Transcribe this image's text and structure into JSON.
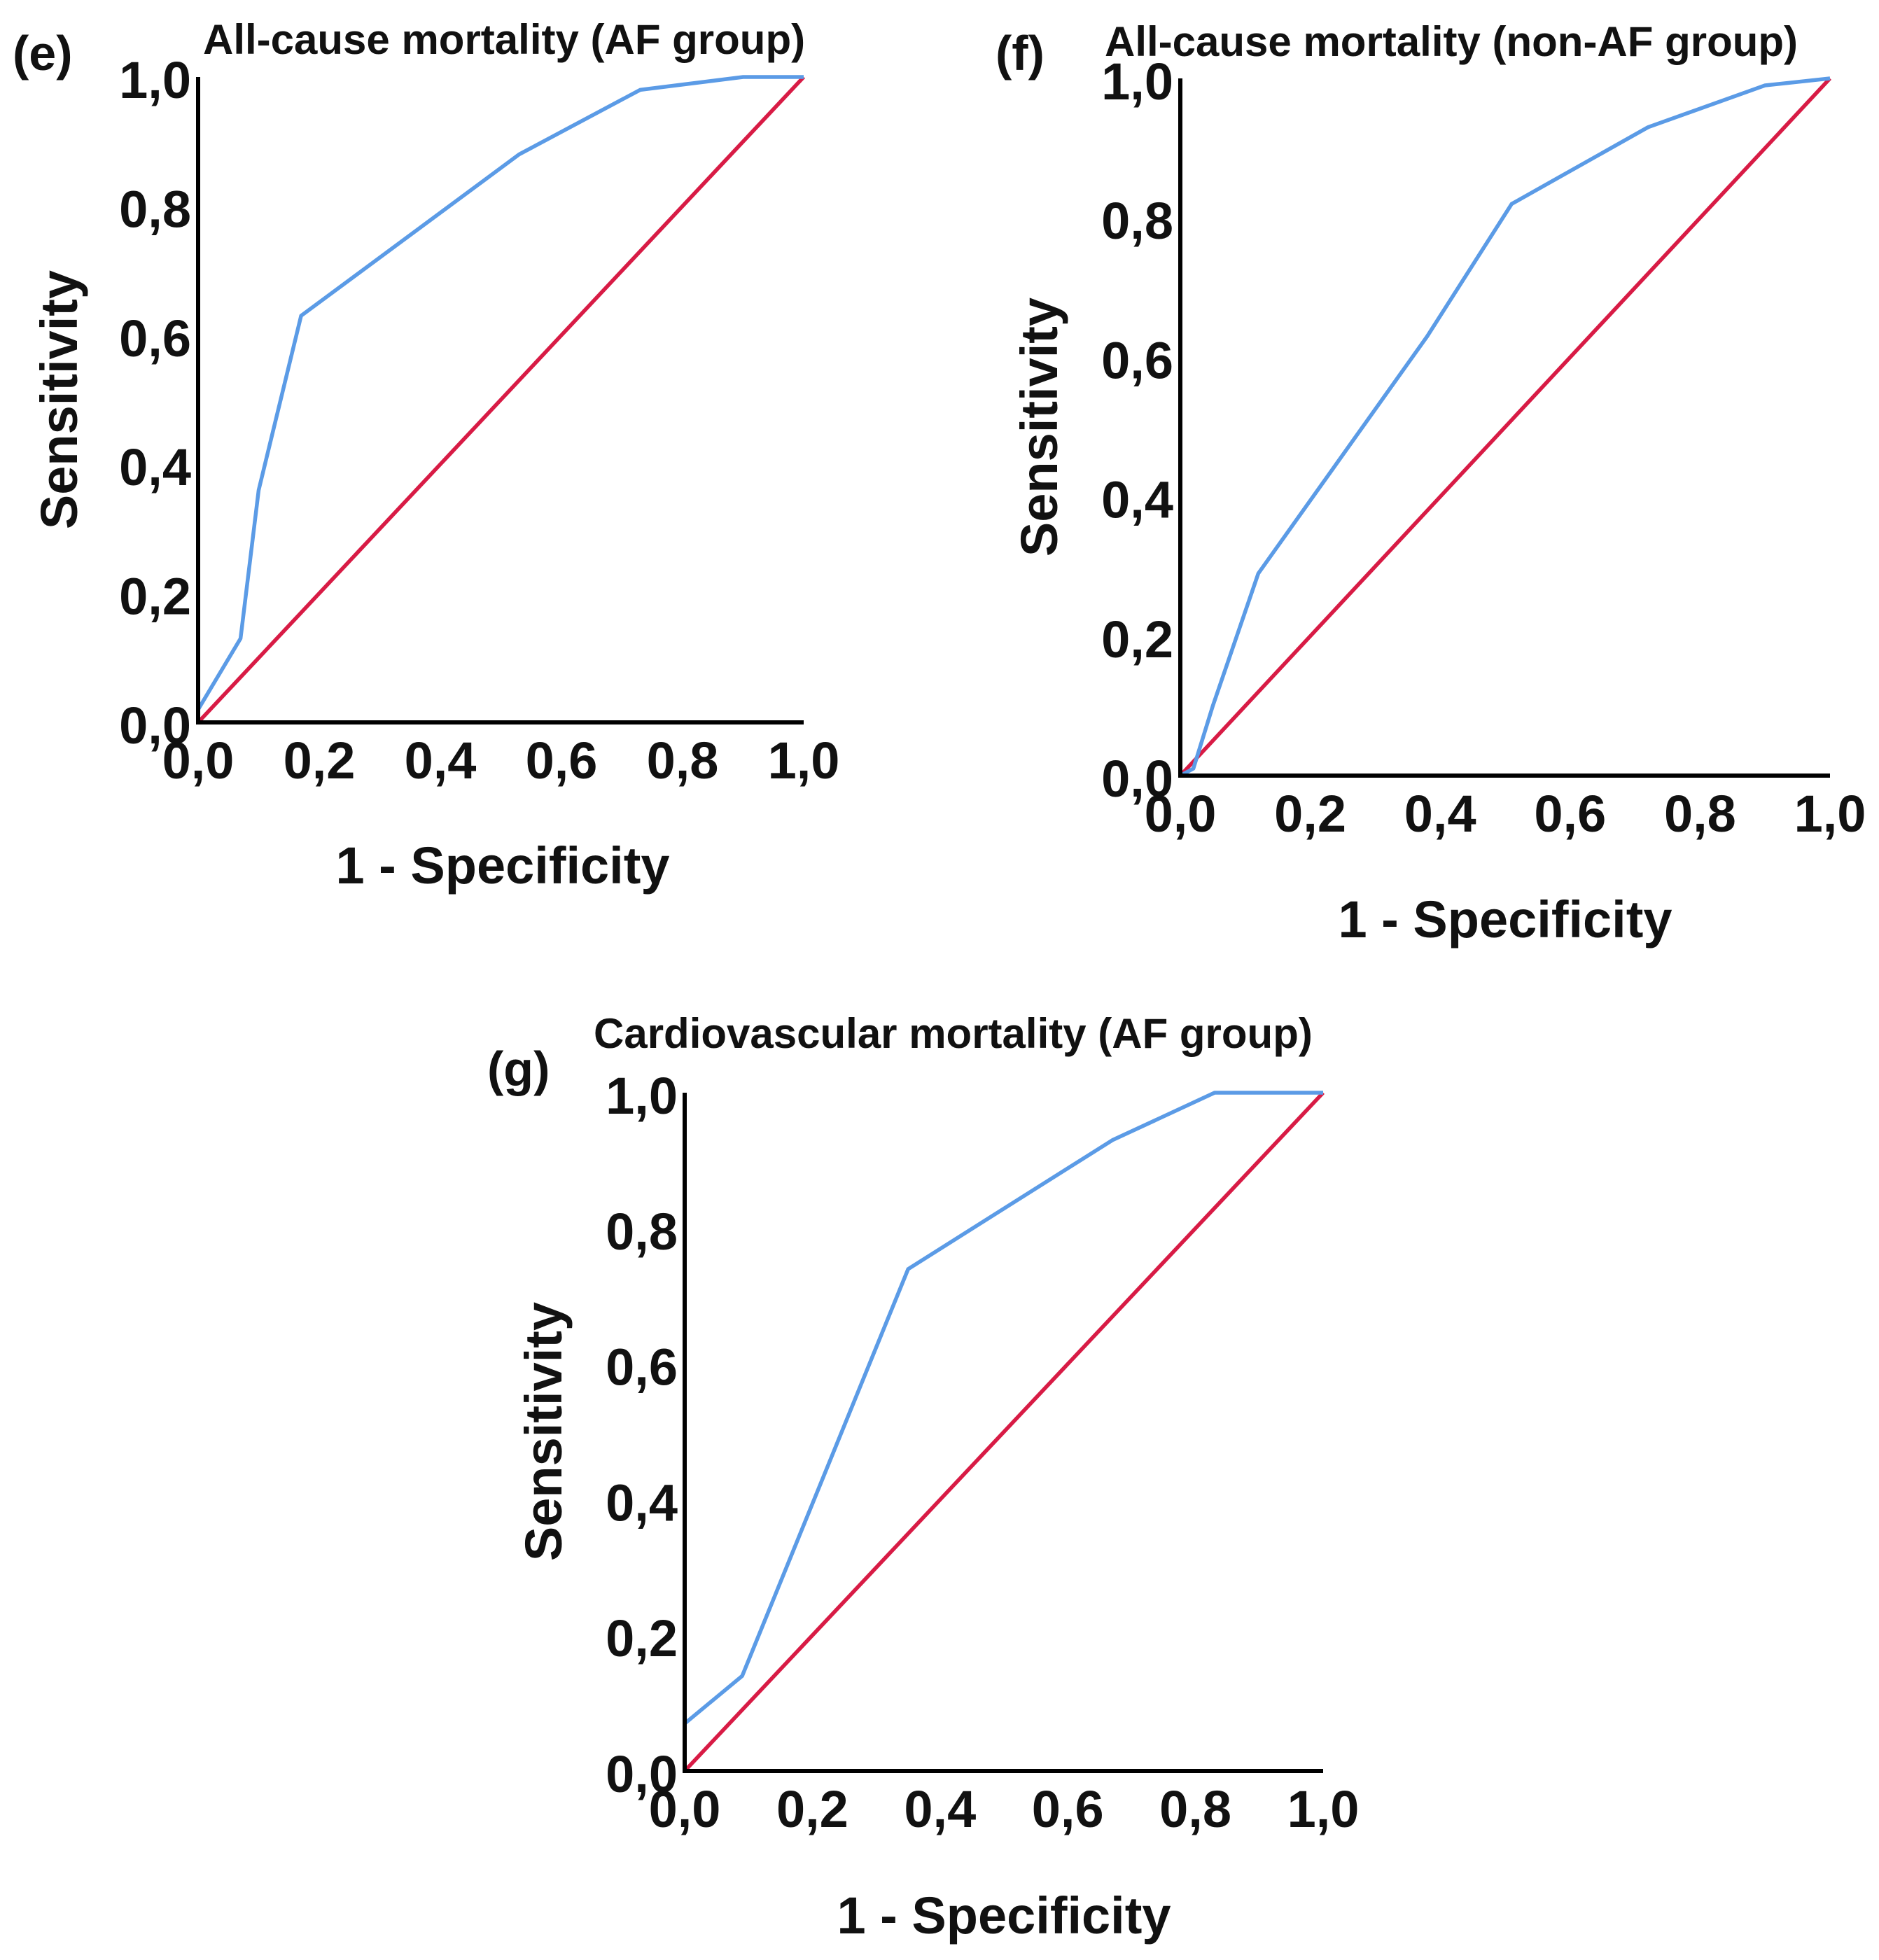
{
  "chart_data": [
    {
      "type": "line",
      "panel_label": "(e)",
      "title": "All-cause mortality (AF group)",
      "xlabel": "1 - Specificity",
      "ylabel": "Sensitivity",
      "xlim": [
        0,
        1
      ],
      "ylim": [
        0,
        1
      ],
      "xticks": [
        "0,0",
        "0,2",
        "0,4",
        "0,6",
        "0,8",
        "1,0"
      ],
      "yticks": [
        "0,0",
        "0,2",
        "0,4",
        "0,6",
        "0,8",
        "1,0"
      ],
      "series": [
        {
          "name": "ROC curve",
          "color": "#5b9be6",
          "x": [
            0,
            0,
            0.07,
            0.1,
            0.17,
            0.53,
            0.73,
            0.9,
            1.0
          ],
          "y": [
            0,
            0.02,
            0.13,
            0.36,
            0.63,
            0.88,
            0.98,
            1.0,
            1.0
          ]
        },
        {
          "name": "Reference line",
          "color": "#d81b45",
          "x": [
            0,
            1
          ],
          "y": [
            0,
            1
          ]
        }
      ]
    },
    {
      "type": "line",
      "panel_label": "(f)",
      "title": "All-cause mortality (non-AF group)",
      "xlabel": "1 - Specificity",
      "ylabel": "Sensitivity",
      "xlim": [
        0,
        1
      ],
      "ylim": [
        0,
        1
      ],
      "xticks": [
        "0,0",
        "0,2",
        "0,4",
        "0,6",
        "0,8",
        "1,0"
      ],
      "yticks": [
        "0,0",
        "0,2",
        "0,4",
        "0,6",
        "0,8",
        "1,0"
      ],
      "series": [
        {
          "name": "ROC curve",
          "color": "#5b9be6",
          "x": [
            0,
            0.02,
            0.05,
            0.12,
            0.38,
            0.51,
            0.72,
            0.9,
            1.0
          ],
          "y": [
            0,
            0.01,
            0.1,
            0.29,
            0.63,
            0.82,
            0.93,
            0.99,
            1.0
          ]
        },
        {
          "name": "Reference line",
          "color": "#d81b45",
          "x": [
            0,
            1
          ],
          "y": [
            0,
            1
          ]
        }
      ]
    },
    {
      "type": "line",
      "panel_label": "(g)",
      "title": "Cardiovascular mortality (AF group)",
      "xlabel": "1 - Specificity",
      "ylabel": "Sensitivity",
      "xlim": [
        0,
        1
      ],
      "ylim": [
        0,
        1
      ],
      "xticks": [
        "0,0",
        "0,2",
        "0,4",
        "0,6",
        "0,8",
        "1,0"
      ],
      "yticks": [
        "0,0",
        "0,2",
        "0,4",
        "0,6",
        "0,8",
        "1,0"
      ],
      "series": [
        {
          "name": "ROC curve",
          "color": "#5b9be6",
          "x": [
            0,
            0,
            0.09,
            0.35,
            0.67,
            0.83,
            1.0
          ],
          "y": [
            0,
            0.07,
            0.14,
            0.74,
            0.93,
            1.0,
            1.0
          ]
        },
        {
          "name": "Reference line",
          "color": "#d81b45",
          "x": [
            0,
            1
          ],
          "y": [
            0,
            1
          ]
        }
      ]
    }
  ]
}
